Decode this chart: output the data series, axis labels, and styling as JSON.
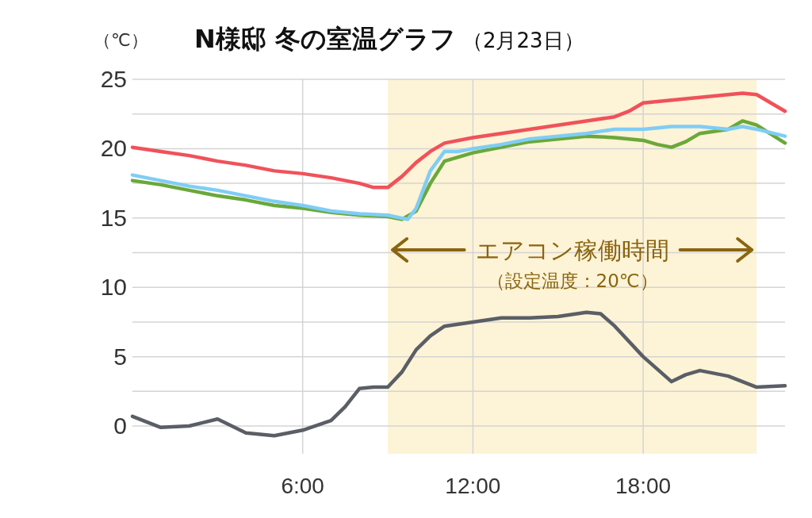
{
  "chart_data": {
    "type": "line",
    "title": "N様邸 冬の室温グラフ",
    "subtitle": "（2月23日）",
    "ylabel": "（℃）",
    "xlim": [
      0,
      23
    ],
    "xticks": [
      {
        "value": 6,
        "label": "6:00"
      },
      {
        "value": 12,
        "label": "12:00"
      },
      {
        "value": 18,
        "label": "18:00"
      }
    ],
    "ylim": [
      -2,
      25
    ],
    "yticks": [
      0,
      {
        "value": 2.5,
        "label": null
      },
      5,
      {
        "value": 7.5,
        "label": null
      },
      10,
      {
        "value": 12.5,
        "label": null
      },
      15,
      {
        "value": 17.5,
        "label": null
      },
      20,
      {
        "value": 22.5,
        "label": null
      },
      25
    ],
    "grid": true,
    "marker": "none",
    "line_style": "solid",
    "bands": [
      {
        "axis": "x",
        "from": 9,
        "to": 22,
        "label": "エアコン稼働時間",
        "color": "#fdf3d6"
      }
    ],
    "annotations": [
      "（設定温度：20℃）"
    ],
    "series": [
      {
        "color": "#f0525a",
        "x": [
          0,
          1,
          2,
          3,
          4,
          5,
          6,
          7,
          8,
          8.5,
          9,
          9.5,
          10,
          10.5,
          11,
          12,
          13,
          14,
          15,
          16,
          17,
          17.5,
          18,
          19,
          20,
          21,
          21.5,
          22,
          23
        ],
        "values": [
          20.1,
          19.8,
          19.5,
          19.1,
          18.8,
          18.4,
          18.2,
          17.9,
          17.5,
          17.2,
          17.2,
          18.0,
          19.0,
          19.8,
          20.4,
          20.8,
          21.1,
          21.4,
          21.7,
          22.0,
          22.3,
          22.7,
          23.3,
          23.5,
          23.7,
          23.9,
          24.0,
          23.9,
          22.7
        ]
      },
      {
        "color": "#6aa83a",
        "x": [
          0,
          1,
          2,
          3,
          4,
          5,
          6,
          7,
          8,
          9,
          9.5,
          10,
          10.5,
          11,
          12,
          13,
          14,
          15,
          16,
          17,
          18,
          18.5,
          19,
          19.5,
          20,
          21,
          21.5,
          22,
          23
        ],
        "values": [
          17.7,
          17.4,
          17.0,
          16.6,
          16.3,
          15.9,
          15.7,
          15.4,
          15.2,
          15.1,
          14.9,
          15.5,
          17.5,
          19.1,
          19.7,
          20.1,
          20.5,
          20.7,
          20.9,
          20.8,
          20.6,
          20.3,
          20.1,
          20.5,
          21.1,
          21.4,
          22.0,
          21.7,
          20.4
        ]
      },
      {
        "color": "#7fcdf5",
        "x": [
          0,
          1,
          2,
          3,
          4,
          5,
          6,
          7,
          8,
          9,
          9.7,
          10,
          10.5,
          11,
          11.5,
          12,
          13,
          14,
          15,
          16,
          17,
          18,
          19,
          20,
          21,
          21.5,
          22,
          23
        ],
        "values": [
          18.1,
          17.7,
          17.3,
          17.0,
          16.6,
          16.2,
          15.9,
          15.5,
          15.3,
          15.2,
          14.9,
          15.7,
          18.4,
          19.8,
          19.8,
          20.0,
          20.3,
          20.7,
          20.9,
          21.1,
          21.4,
          21.4,
          21.6,
          21.6,
          21.4,
          21.6,
          21.4,
          20.9
        ]
      },
      {
        "color": "#5a5e66",
        "x": [
          0,
          1,
          2,
          3,
          4,
          5,
          6,
          7,
          7.5,
          8,
          8.5,
          9,
          9.5,
          10,
          10.5,
          11,
          12,
          13,
          14,
          15,
          16,
          16.5,
          17,
          18,
          19,
          19.5,
          20,
          21,
          22,
          23
        ],
        "values": [
          0.7,
          -0.1,
          0.0,
          0.5,
          -0.5,
          -0.7,
          -0.3,
          0.4,
          1.4,
          2.7,
          2.8,
          2.8,
          3.9,
          5.5,
          6.5,
          7.2,
          7.5,
          7.8,
          7.8,
          7.9,
          8.2,
          8.1,
          7.2,
          5.0,
          3.2,
          3.7,
          4.0,
          3.6,
          2.8,
          2.9
        ]
      }
    ]
  }
}
